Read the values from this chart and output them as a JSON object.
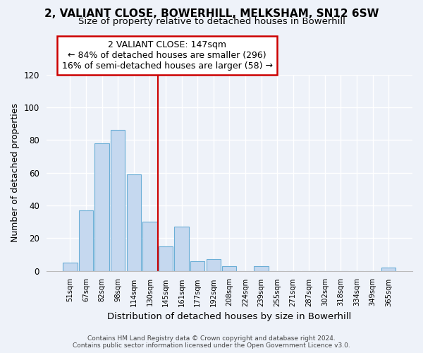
{
  "title": "2, VALIANT CLOSE, BOWERHILL, MELKSHAM, SN12 6SW",
  "subtitle": "Size of property relative to detached houses in Bowerhill",
  "xlabel": "Distribution of detached houses by size in Bowerhill",
  "ylabel": "Number of detached properties",
  "bar_labels": [
    "51sqm",
    "67sqm",
    "82sqm",
    "98sqm",
    "114sqm",
    "130sqm",
    "145sqm",
    "161sqm",
    "177sqm",
    "192sqm",
    "208sqm",
    "224sqm",
    "239sqm",
    "255sqm",
    "271sqm",
    "287sqm",
    "302sqm",
    "318sqm",
    "334sqm",
    "349sqm",
    "365sqm"
  ],
  "bar_values": [
    5,
    37,
    78,
    86,
    59,
    30,
    15,
    27,
    6,
    7,
    3,
    0,
    3,
    0,
    0,
    0,
    0,
    0,
    0,
    0,
    2
  ],
  "bar_color": "#c5d8ef",
  "bar_edge_color": "#6baed6",
  "vline_x_idx": 6,
  "vline_color": "#cc0000",
  "annotation_title": "2 VALIANT CLOSE: 147sqm",
  "annotation_line1": "← 84% of detached houses are smaller (296)",
  "annotation_line2": "16% of semi-detached houses are larger (58) →",
  "annotation_box_color": "#ffffff",
  "annotation_box_edge": "#cc0000",
  "ylim": [
    0,
    120
  ],
  "yticks": [
    0,
    20,
    40,
    60,
    80,
    100,
    120
  ],
  "footer1": "Contains HM Land Registry data © Crown copyright and database right 2024.",
  "footer2": "Contains public sector information licensed under the Open Government Licence v3.0.",
  "bg_color": "#eef2f9",
  "title_fontsize": 11,
  "subtitle_fontsize": 9.5,
  "ylabel_fontsize": 9,
  "xlabel_fontsize": 9.5
}
